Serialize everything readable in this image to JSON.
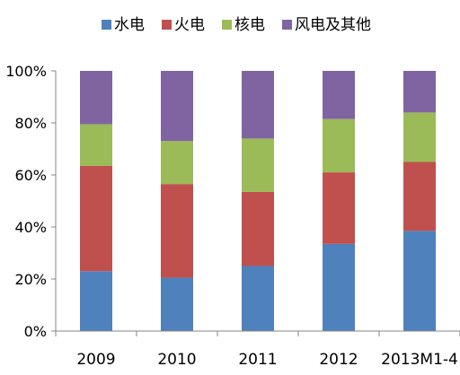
{
  "chart_data": {
    "type": "bar",
    "stacked": true,
    "percent": true,
    "title": "",
    "xlabel": "",
    "ylabel": "",
    "ylim": [
      0,
      100
    ],
    "yticks": [
      "0%",
      "20%",
      "40%",
      "60%",
      "80%",
      "100%"
    ],
    "categories": [
      "2009",
      "2010",
      "2011",
      "2012",
      "2013M1-4"
    ],
    "series": [
      {
        "name": "水电",
        "color": "#4f81bd",
        "values": [
          23,
          20.5,
          25,
          33.5,
          38.5
        ]
      },
      {
        "name": "火电",
        "color": "#c0504d",
        "values": [
          40.5,
          36,
          28.5,
          27.5,
          26.5
        ]
      },
      {
        "name": "核电",
        "color": "#9bbb59",
        "values": [
          16,
          16.5,
          20.5,
          20.5,
          19
        ]
      },
      {
        "name": "风电及其他",
        "color": "#8064a2",
        "values": [
          20.5,
          27,
          26,
          18.5,
          16
        ]
      }
    ],
    "legend": "top",
    "grid": false
  }
}
